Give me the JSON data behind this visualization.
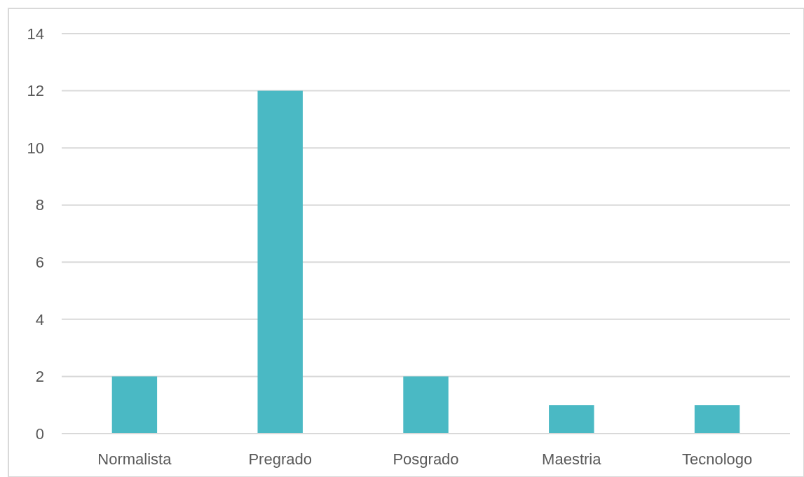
{
  "chart_data": {
    "type": "bar",
    "categories": [
      "Normalista",
      "Pregrado",
      "Posgrado",
      "Maestria",
      "Tecnologo"
    ],
    "values": [
      2,
      12,
      2,
      1,
      1
    ],
    "color": "#4ab9c4",
    "ylim": [
      0,
      14
    ],
    "yticks": [
      0,
      2,
      4,
      6,
      8,
      10,
      12,
      14
    ],
    "grid": "y"
  }
}
